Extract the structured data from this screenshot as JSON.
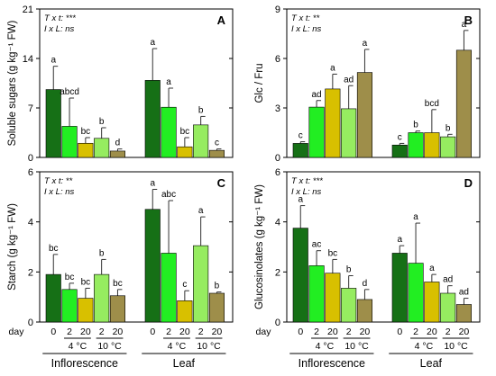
{
  "colors": {
    "0": "#167016",
    "4_2": "#22ee22",
    "4_20": "#d8c000",
    "10_2": "#96ec60",
    "10_20": "#9e8e4a"
  },
  "x_axis": {
    "day_label": "day",
    "days": [
      "0",
      "2",
      "20",
      "2",
      "20"
    ],
    "temps": [
      "4 °C",
      "10 °C"
    ],
    "groups": [
      "Inflorescence",
      "Leaf"
    ]
  },
  "chart_data": [
    {
      "type": "bar",
      "letter": "A",
      "ylabel": "Soluble sugars (g kg⁻¹ FW)",
      "ylim": [
        0,
        21
      ],
      "yticks": [
        "0",
        "7",
        "14",
        "21"
      ],
      "stats": [
        "T x t: ***",
        "I x L: ns"
      ],
      "groups": [
        {
          "name": "Inflorescence",
          "values": [
            9.6,
            4.4,
            2.0,
            2.7,
            0.9
          ],
          "errors": [
            3.3,
            4.0,
            0.8,
            1.5,
            0.3
          ],
          "letters": [
            "a",
            "abcd",
            "bc",
            "b",
            "d"
          ]
        },
        {
          "name": "Leaf",
          "values": [
            10.9,
            7.1,
            1.5,
            4.6,
            1.0
          ],
          "errors": [
            4.5,
            2.7,
            1.3,
            1.2,
            0.2
          ],
          "letters": [
            "a",
            "a",
            "bc",
            "b",
            "c"
          ]
        }
      ]
    },
    {
      "type": "bar",
      "letter": "B",
      "ylabel": "Glc / Fru",
      "ylim": [
        0,
        9
      ],
      "yticks": [
        "0",
        "3",
        "6",
        "9"
      ],
      "stats": [
        "T x t: **",
        "I x L: ns"
      ],
      "groups": [
        {
          "name": "Inflorescence",
          "values": [
            0.85,
            3.05,
            4.15,
            2.95,
            5.15
          ],
          "errors": [
            0.1,
            0.4,
            0.9,
            1.4,
            1.4
          ],
          "letters": [
            "c",
            "ad",
            "a",
            "ad",
            "a"
          ]
        },
        {
          "name": "Leaf",
          "values": [
            0.75,
            1.5,
            1.5,
            1.25,
            6.5
          ],
          "errors": [
            0.1,
            0.1,
            1.4,
            0.15,
            1.2
          ],
          "letters": [
            "c",
            "b",
            "bcd",
            "b",
            "a"
          ]
        }
      ]
    },
    {
      "type": "bar",
      "letter": "C",
      "ylabel": "Starch (g kg⁻¹ FW)",
      "ylim": [
        0,
        6
      ],
      "yticks": [
        "0",
        "2",
        "4",
        "6"
      ],
      "stats": [
        "T x t: **",
        "I x L: ns"
      ],
      "groups": [
        {
          "name": "Inflorescence",
          "values": [
            1.9,
            1.3,
            0.95,
            1.9,
            1.05
          ],
          "errors": [
            0.8,
            0.25,
            0.4,
            0.6,
            0.25
          ],
          "letters": [
            "bc",
            "bc",
            "bc",
            "b",
            "bc"
          ]
        },
        {
          "name": "Leaf",
          "values": [
            4.5,
            2.75,
            0.85,
            3.05,
            1.15
          ],
          "errors": [
            0.8,
            2.1,
            0.4,
            1.15,
            0.05
          ],
          "letters": [
            "a",
            "abc",
            "c",
            "a",
            "b"
          ]
        }
      ]
    },
    {
      "type": "bar",
      "letter": "D",
      "ylabel": "Glucosinolates (g kg⁻¹ FW)",
      "ylim": [
        0,
        6
      ],
      "yticks": [
        "0",
        "2",
        "4",
        "6"
      ],
      "stats": [
        "T x t: ***",
        "I x L: ns"
      ],
      "groups": [
        {
          "name": "Inflorescence",
          "values": [
            3.75,
            2.25,
            1.95,
            1.35,
            0.9
          ],
          "errors": [
            0.9,
            0.6,
            0.55,
            0.5,
            0.4
          ],
          "letters": [
            "a",
            "ac",
            "bc",
            "b",
            "d"
          ]
        },
        {
          "name": "Leaf",
          "values": [
            2.75,
            2.35,
            1.6,
            1.15,
            0.7
          ],
          "errors": [
            0.3,
            1.6,
            0.3,
            0.3,
            0.25
          ],
          "letters": [
            "a",
            "a",
            "a",
            "ad",
            "ad"
          ]
        }
      ]
    }
  ]
}
